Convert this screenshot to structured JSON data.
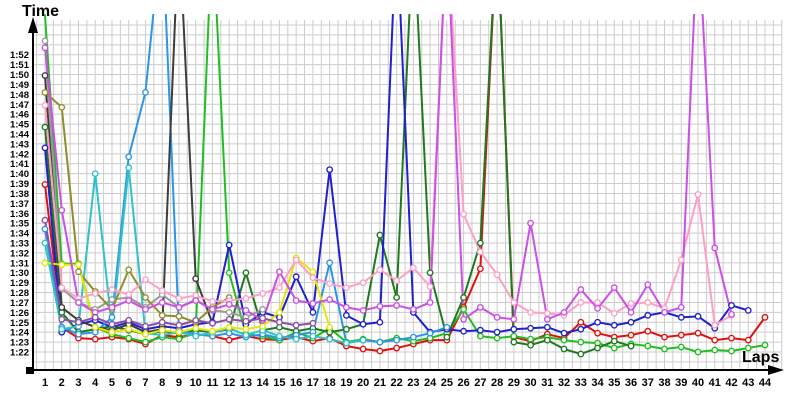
{
  "page": {
    "background": "#ffffff",
    "grid_color": "#cccccc",
    "axis_color": "#000000"
  },
  "chart_data": {
    "type": "line",
    "title": "",
    "xlabel": "Laps",
    "ylabel": "Time",
    "x_values": [
      1,
      2,
      3,
      4,
      5,
      6,
      7,
      8,
      9,
      10,
      11,
      12,
      13,
      14,
      15,
      16,
      17,
      18,
      19,
      20,
      21,
      22,
      23,
      24,
      25,
      26,
      27,
      28,
      29,
      30,
      31,
      32,
      33,
      34,
      35,
      36,
      37,
      38,
      39,
      40,
      41,
      42,
      43,
      44
    ],
    "y_ticks": [
      "1:52",
      "1:51",
      "1:50",
      "1:49",
      "1:48",
      "1:47",
      "1:46",
      "1:45",
      "1:44",
      "1:43",
      "1:42",
      "1:41",
      "1:40",
      "1:39",
      "1:38",
      "1:37",
      "1:36",
      "1:35",
      "1:34",
      "1:33",
      "1:32",
      "1:31",
      "1:30",
      "1:29",
      "1:28",
      "1:27",
      "1:26",
      "1:25",
      "1:24",
      "1:23",
      "1:22"
    ],
    "ylim_seconds": [
      82,
      112
    ],
    "note": "values are lap times in seconds (1:22 = 82s); 125 = off-scale pit lap; null = no lap recorded",
    "grid": true,
    "legend": "none",
    "series": [
      {
        "name": "red",
        "color": "#e01010",
        "values": [
          98.9,
          84.5,
          83.4,
          83.3,
          83.5,
          83.3,
          82.8,
          83.7,
          83.5,
          83.8,
          83.6,
          83.2,
          83.6,
          83.3,
          83.2,
          83.5,
          83.1,
          83.4,
          82.6,
          82.3,
          82.1,
          82.4,
          82.8,
          83.2,
          83.2,
          86.5,
          90.4,
          125,
          83.5,
          83.1,
          83.8,
          83.4,
          85.0,
          83.9,
          83.5,
          83.7,
          84.1,
          83.5,
          83.7,
          83.9,
          83.2,
          83.4,
          83.2,
          85.5
        ]
      },
      {
        "name": "green",
        "color": "#1fbf1f",
        "values": [
          116,
          90.9,
          90.9,
          84.5,
          83.8,
          83.4,
          83.0,
          83.5,
          83.3,
          84.0,
          125,
          90.0,
          83.8,
          83.6,
          83.2,
          84.0,
          83.4,
          84.4,
          83.0,
          83.3,
          83.0,
          83.4,
          83.1,
          83.4,
          83.9,
          86.3,
          83.6,
          83.4,
          83.6,
          83.3,
          83.5,
          83.2,
          83.0,
          82.9,
          82.4,
          82.8,
          82.6,
          82.3,
          82.5,
          82.0,
          82.2,
          82.1,
          82.4,
          82.7
        ]
      },
      {
        "name": "forest-green",
        "color": "#1e7a1e",
        "values": [
          104.7,
          86.0,
          84.0,
          84.3,
          84.6,
          84.2,
          83.8,
          84.1,
          83.9,
          84.2,
          84.0,
          84.3,
          90.0,
          84.2,
          84.5,
          84.1,
          84.4,
          84.0,
          84.3,
          84.8,
          93.8,
          87.5,
          125,
          90.0,
          83.5,
          87.5,
          93.0,
          125,
          83.0,
          82.7,
          83.2,
          82.3,
          81.8,
          82.4,
          83.1,
          82.6,
          null,
          null,
          null,
          null,
          null,
          null,
          null,
          null
        ]
      },
      {
        "name": "blue",
        "color": "#2020cc",
        "values": [
          102.6,
          84.0,
          84.8,
          85.2,
          84.5,
          85.0,
          84.3,
          84.6,
          84.4,
          84.8,
          85.0,
          92.8,
          84.8,
          86.0,
          85.5,
          89.6,
          86.0,
          100.4,
          85.7,
          84.8,
          85.0,
          125,
          86.0,
          84.0,
          84.3,
          84.1,
          84.2,
          84.0,
          84.3,
          84.4,
          84.5,
          83.9,
          84.3,
          85.0,
          84.7,
          85.0,
          85.7,
          86.0,
          85.5,
          85.6,
          84.4,
          86.7,
          86.2,
          null
        ]
      },
      {
        "name": "light-blue",
        "color": "#2b95e8",
        "values": [
          94.4,
          84.5,
          83.8,
          84.0,
          85.5,
          101.7,
          108.2,
          125,
          84.2,
          83.8,
          83.6,
          83.9,
          83.5,
          83.8,
          83.4,
          83.7,
          84.0,
          91.0,
          82.9,
          83.2,
          83.0,
          83.2,
          83.5,
          83.9,
          84.5,
          null,
          null,
          null,
          null,
          null,
          null,
          null,
          null,
          null,
          null,
          null,
          null,
          null,
          null,
          null,
          null,
          null,
          null,
          null
        ]
      },
      {
        "name": "cyan",
        "color": "#2cc3cc",
        "values": [
          93.0,
          84.3,
          84.6,
          100.0,
          84.4,
          100.6,
          83.9,
          83.7,
          84.0,
          83.6,
          84.0,
          84.4,
          83.7,
          84.2,
          83.6,
          83.3,
          83.6,
          83.3,
          82.9,
          83.2,
          null,
          null,
          null,
          null,
          null,
          null,
          null,
          null,
          null,
          null,
          null,
          null,
          null,
          null,
          null,
          null,
          null,
          null,
          null,
          null,
          null,
          null,
          null,
          null
        ]
      },
      {
        "name": "grey",
        "color": "#9a9a9a",
        "values": [
          113.4,
          88.4,
          87.0,
          86.3,
          87.3,
          87.5,
          86.5,
          87.8,
          86.5,
          87.3,
          86.2,
          86.0,
          85.5,
          86.3,
          null,
          null,
          null,
          null,
          null,
          null,
          null,
          null,
          null,
          null,
          null,
          null,
          null,
          null,
          null,
          null,
          null,
          null,
          null,
          null,
          null,
          null,
          null,
          null,
          null,
          null,
          null,
          null,
          null,
          null
        ]
      },
      {
        "name": "dark-grey",
        "color": "#3d3d3d",
        "values": [
          109.9,
          86.5,
          85.2,
          84.5,
          84.2,
          84.8,
          84.0,
          84.3,
          125,
          89.4,
          84.9,
          null,
          null,
          null,
          null,
          null,
          null,
          null,
          null,
          null,
          null,
          null,
          null,
          null,
          null,
          null,
          null,
          null,
          null,
          null,
          null,
          null,
          null,
          null,
          null,
          null,
          null,
          null,
          null,
          null,
          null,
          null,
          null,
          null
        ]
      },
      {
        "name": "olive",
        "color": "#8f8f2a",
        "values": [
          108.2,
          106.7,
          90.1,
          88.1,
          86.3,
          90.3,
          87.5,
          85.7,
          85.6,
          85.0,
          86.5,
          87.5,
          null,
          null,
          null,
          null,
          null,
          null,
          null,
          null,
          null,
          null,
          null,
          null,
          null,
          null,
          null,
          null,
          null,
          null,
          null,
          null,
          null,
          null,
          null,
          null,
          null,
          null,
          null,
          null,
          null,
          null,
          null,
          null
        ]
      },
      {
        "name": "yellow",
        "color": "#e6e600",
        "values": [
          91.0,
          90.8,
          90.8,
          84.5,
          84.0,
          84.3,
          83.8,
          84.2,
          84.0,
          84.4,
          84.1,
          84.5,
          84.3,
          84.6,
          86.0,
          91.5,
          90.1,
          84.5,
          null,
          null,
          null,
          null,
          null,
          null,
          null,
          null,
          null,
          null,
          null,
          null,
          null,
          null,
          null,
          null,
          null,
          null,
          null,
          null,
          null,
          null,
          null,
          null,
          null,
          null
        ]
      },
      {
        "name": "pink",
        "color": "#ff9fc6",
        "values": [
          106.9,
          88.5,
          87.4,
          87.9,
          88.3,
          87.8,
          89.3,
          88.2,
          87.4,
          87.7,
          87.1,
          87.2,
          87.4,
          87.9,
          88.5,
          91.3,
          89.5,
          88.9,
          88.5,
          89.0,
          90.3,
          89.2,
          90.5,
          88.6,
          125,
          95.9,
          92.1,
          89.8,
          87.0,
          86.0,
          85.9,
          85.7,
          87.0,
          87.0,
          85.9,
          86.9,
          87.0,
          86.4,
          91.3,
          97.9,
          84.7,
          85.7,
          null,
          null
        ]
      },
      {
        "name": "magenta",
        "color": "#cc4fe6",
        "values": [
          112.7,
          96.3,
          87.0,
          86.0,
          86.5,
          87.2,
          86.3,
          87.0,
          86.5,
          87.2,
          86.3,
          86.8,
          86.2,
          85.2,
          90.1,
          87.2,
          86.9,
          87.3,
          86.5,
          86.2,
          86.6,
          86.7,
          86.3,
          87.0,
          125,
          85.3,
          86.5,
          85.5,
          85.3,
          95.0,
          85.3,
          86.0,
          88.3,
          86.4,
          88.5,
          86.0,
          88.8,
          86.0,
          86.5,
          125,
          92.5,
          85.8,
          null,
          null
        ]
      },
      {
        "name": "violet",
        "color": "#8a4fa8",
        "values": [
          95.3,
          85.3,
          85.0,
          85.5,
          84.8,
          85.2,
          84.6,
          85.0,
          84.7,
          85.2,
          84.9,
          85.3,
          85.1,
          85.4,
          85.0,
          84.7,
          84.9,
          null,
          null,
          null,
          null,
          null,
          null,
          null,
          null,
          null,
          null,
          null,
          null,
          null,
          null,
          null,
          null,
          null,
          null,
          null,
          null,
          null,
          null,
          null,
          null,
          null,
          null,
          null
        ]
      }
    ]
  }
}
